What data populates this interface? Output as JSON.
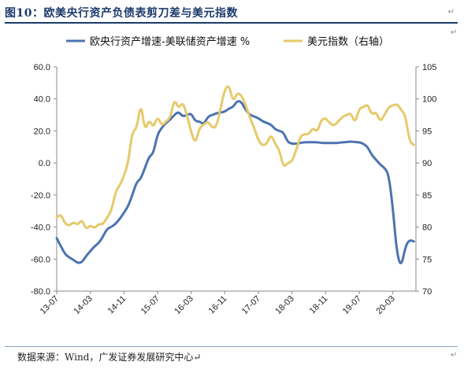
{
  "header": {
    "title": "图10：欧美央行资产负债表剪刀差与美元指数",
    "para_mark": "↵"
  },
  "footer": {
    "source": "数据来源：Wind，广发证券发展研究中心↵",
    "para_mark": "↵"
  },
  "colors": {
    "series_left": "#4c73b0",
    "series_right": "#e6c96a",
    "axis": "#888888",
    "title": "#1c3a6b"
  },
  "chart_data": {
    "type": "line",
    "legend": {
      "placement": "top"
    },
    "grid": false,
    "x_ticks": [
      "13-07",
      "14-03",
      "14-11",
      "15-07",
      "16-03",
      "16-11",
      "17-07",
      "18-03",
      "18-11",
      "19-07",
      "20-03"
    ],
    "x_start": "2013-07",
    "x_end": "2020-07",
    "y_left": {
      "range": [
        -80,
        60
      ],
      "ticks": [
        "-80.0",
        "-60.0",
        "-40.0",
        "-20.0",
        "0.0",
        "20.0",
        "40.0",
        "60.0"
      ]
    },
    "y_right": {
      "range": [
        70,
        105
      ],
      "ticks": [
        "70",
        "75",
        "80",
        "85",
        "90",
        "95",
        "100",
        "105"
      ]
    },
    "series": [
      {
        "name": "欧央行资产增速-美联储资产增速 %",
        "axis": "left",
        "points": [
          [
            "2013-07",
            -47
          ],
          [
            "2013-08",
            -52
          ],
          [
            "2013-09",
            -57
          ],
          [
            "2013-10",
            -59
          ],
          [
            "2013-11",
            -60.5
          ],
          [
            "2013-12",
            -62.5
          ],
          [
            "2014-01",
            -62
          ],
          [
            "2014-02",
            -58
          ],
          [
            "2014-03",
            -55
          ],
          [
            "2014-04",
            -52
          ],
          [
            "2014-05",
            -50
          ],
          [
            "2014-06",
            -46
          ],
          [
            "2014-07",
            -41
          ],
          [
            "2014-08",
            -40
          ],
          [
            "2014-09",
            -38
          ],
          [
            "2014-10",
            -35
          ],
          [
            "2014-11",
            -31
          ],
          [
            "2014-12",
            -27
          ],
          [
            "2015-01",
            -20
          ],
          [
            "2015-02",
            -12
          ],
          [
            "2015-03",
            -10
          ],
          [
            "2015-04",
            -3
          ],
          [
            "2015-05",
            4
          ],
          [
            "2015-06",
            6
          ],
          [
            "2015-07",
            18
          ],
          [
            "2015-08",
            22
          ],
          [
            "2015-09",
            25
          ],
          [
            "2015-10",
            27
          ],
          [
            "2015-11",
            30
          ],
          [
            "2015-12",
            32
          ],
          [
            "2016-01",
            29
          ],
          [
            "2016-02",
            30
          ],
          [
            "2016-03",
            31
          ],
          [
            "2016-04",
            26
          ],
          [
            "2016-05",
            26
          ],
          [
            "2016-06",
            24
          ],
          [
            "2016-07",
            29
          ],
          [
            "2016-08",
            30
          ],
          [
            "2016-09",
            31
          ],
          [
            "2016-10",
            31.5
          ],
          [
            "2016-11",
            32
          ],
          [
            "2016-12",
            34
          ],
          [
            "2017-01",
            35
          ],
          [
            "2017-02",
            39
          ],
          [
            "2017-03",
            38
          ],
          [
            "2017-04",
            33
          ],
          [
            "2017-05",
            30
          ],
          [
            "2017-06",
            29
          ],
          [
            "2017-07",
            28
          ],
          [
            "2017-08",
            26
          ],
          [
            "2017-09",
            25
          ],
          [
            "2017-10",
            24
          ],
          [
            "2017-11",
            21
          ],
          [
            "2017-12",
            20
          ],
          [
            "2018-01",
            19
          ],
          [
            "2018-02",
            13
          ],
          [
            "2018-03",
            12
          ],
          [
            "2018-04",
            12
          ],
          [
            "2018-05",
            12.5
          ],
          [
            "2018-06",
            13
          ],
          [
            "2018-07",
            13
          ],
          [
            "2018-08",
            13
          ],
          [
            "2018-09",
            13
          ],
          [
            "2018-10",
            12.5
          ],
          [
            "2018-11",
            12.5
          ],
          [
            "2018-12",
            12.5
          ],
          [
            "2019-01",
            12.5
          ],
          [
            "2019-02",
            12.5
          ],
          [
            "2019-03",
            13
          ],
          [
            "2019-04",
            13
          ],
          [
            "2019-05",
            13.5
          ],
          [
            "2019-06",
            13
          ],
          [
            "2019-07",
            13
          ],
          [
            "2019-08",
            12
          ],
          [
            "2019-09",
            10
          ],
          [
            "2019-10",
            5
          ],
          [
            "2019-11",
            2
          ],
          [
            "2019-12",
            -1
          ],
          [
            "2020-01",
            -3
          ],
          [
            "2020-02",
            -7
          ],
          [
            "2020-03",
            -28
          ],
          [
            "2020-04",
            -57
          ],
          [
            "2020-05",
            -65
          ],
          [
            "2020-06",
            -52
          ],
          [
            "2020-07",
            -48
          ],
          [
            "2020-08",
            -49
          ]
        ]
      },
      {
        "name": "美元指数（右轴）",
        "axis": "right",
        "points": [
          [
            "2013-07",
            81.5
          ],
          [
            "2013-08",
            82
          ],
          [
            "2013-09",
            80.5
          ],
          [
            "2013-10",
            80.2
          ],
          [
            "2013-11",
            80.8
          ],
          [
            "2013-12",
            80.3
          ],
          [
            "2014-01",
            81.2
          ],
          [
            "2014-02",
            79.6
          ],
          [
            "2014-03",
            80.3
          ],
          [
            "2014-04",
            79.8
          ],
          [
            "2014-05",
            80.5
          ],
          [
            "2014-06",
            80.4
          ],
          [
            "2014-07",
            81.5
          ],
          [
            "2014-08",
            82.5
          ],
          [
            "2014-09",
            85.5
          ],
          [
            "2014-10",
            86.5
          ],
          [
            "2014-11",
            88
          ],
          [
            "2014-12",
            90
          ],
          [
            "2015-01",
            95
          ],
          [
            "2015-02",
            95.2
          ],
          [
            "2015-03",
            99.5
          ],
          [
            "2015-04",
            95
          ],
          [
            "2015-05",
            96.8
          ],
          [
            "2015-06",
            95.5
          ],
          [
            "2015-07",
            97.3
          ],
          [
            "2015-08",
            95.8
          ],
          [
            "2015-09",
            96.5
          ],
          [
            "2015-10",
            97
          ],
          [
            "2015-11",
            100
          ],
          [
            "2015-12",
            98.5
          ],
          [
            "2016-01",
            99.5
          ],
          [
            "2016-02",
            97.5
          ],
          [
            "2016-03",
            94.8
          ],
          [
            "2016-04",
            93
          ],
          [
            "2016-05",
            95.5
          ],
          [
            "2016-06",
            96
          ],
          [
            "2016-07",
            96.5
          ],
          [
            "2016-08",
            95.5
          ],
          [
            "2016-09",
            95.6
          ],
          [
            "2016-10",
            98.5
          ],
          [
            "2016-11",
            101.5
          ],
          [
            "2016-12",
            102.2
          ],
          [
            "2017-01",
            99.5
          ],
          [
            "2017-02",
            101
          ],
          [
            "2017-03",
            100.5
          ],
          [
            "2017-04",
            99
          ],
          [
            "2017-05",
            97
          ],
          [
            "2017-06",
            95.5
          ],
          [
            "2017-07",
            93.5
          ],
          [
            "2017-08",
            92.7
          ],
          [
            "2017-09",
            93
          ],
          [
            "2017-10",
            94.5
          ],
          [
            "2017-11",
            93
          ],
          [
            "2017-12",
            92
          ],
          [
            "2018-01",
            89.3
          ],
          [
            "2018-02",
            90
          ],
          [
            "2018-03",
            90.2
          ],
          [
            "2018-04",
            92
          ],
          [
            "2018-05",
            94.2
          ],
          [
            "2018-06",
            94.5
          ],
          [
            "2018-07",
            94.5
          ],
          [
            "2018-08",
            95.5
          ],
          [
            "2018-09",
            94.8
          ],
          [
            "2018-10",
            96.8
          ],
          [
            "2018-11",
            97
          ],
          [
            "2018-12",
            96.2
          ],
          [
            "2019-01",
            95.8
          ],
          [
            "2019-02",
            96.5
          ],
          [
            "2019-03",
            97.2
          ],
          [
            "2019-04",
            97.5
          ],
          [
            "2019-05",
            97.8
          ],
          [
            "2019-06",
            96.2
          ],
          [
            "2019-07",
            98.5
          ],
          [
            "2019-08",
            98.7
          ],
          [
            "2019-09",
            99.2
          ],
          [
            "2019-10",
            97.5
          ],
          [
            "2019-11",
            98
          ],
          [
            "2019-12",
            96.4
          ],
          [
            "2020-01",
            97.5
          ],
          [
            "2020-02",
            98.7
          ],
          [
            "2020-03",
            99
          ],
          [
            "2020-04",
            99.2
          ],
          [
            "2020-05",
            98.3
          ],
          [
            "2020-06",
            97.4
          ],
          [
            "2020-07",
            93.3
          ],
          [
            "2020-08",
            92.8
          ]
        ]
      }
    ]
  }
}
